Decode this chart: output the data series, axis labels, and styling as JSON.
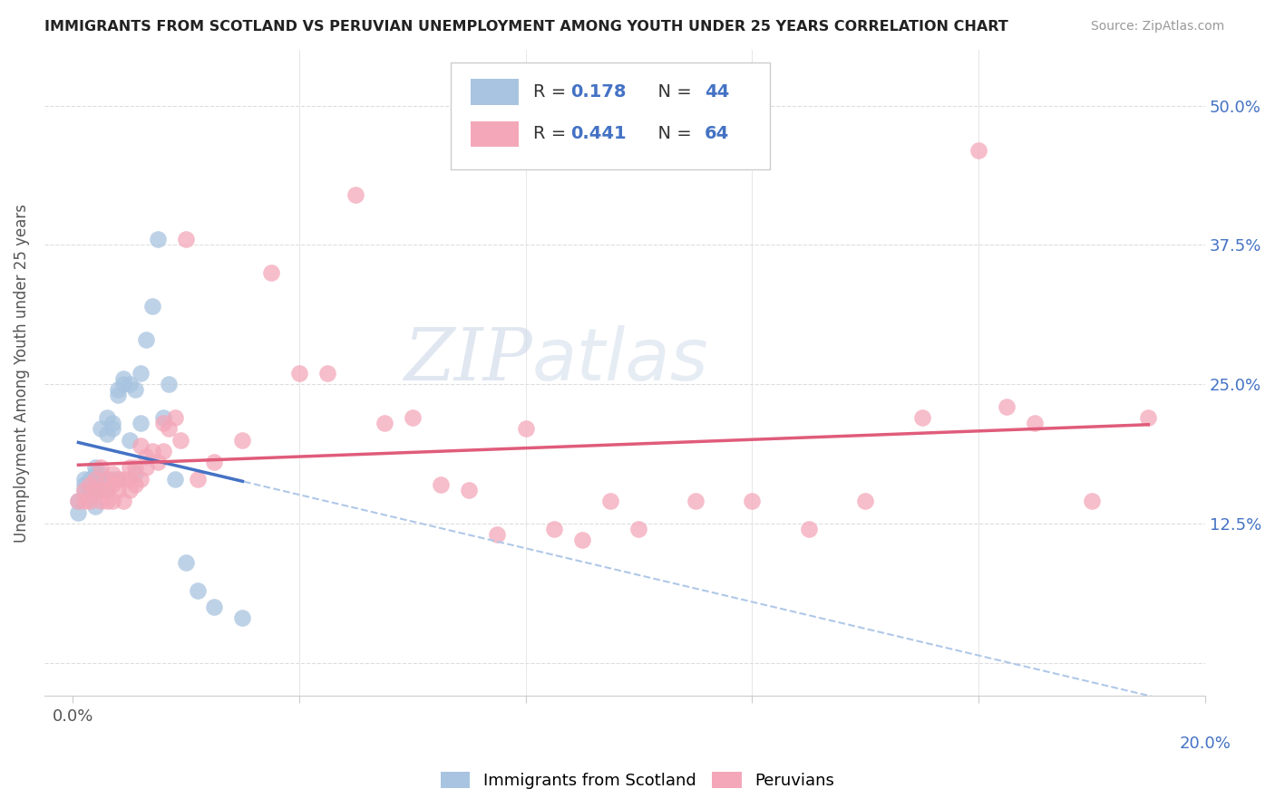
{
  "title": "IMMIGRANTS FROM SCOTLAND VS PERUVIAN UNEMPLOYMENT AMONG YOUTH UNDER 25 YEARS CORRELATION CHART",
  "source": "Source: ZipAtlas.com",
  "ylabel": "Unemployment Among Youth under 25 years",
  "xlim": [
    0.0,
    0.2
  ],
  "ylim": [
    -0.03,
    0.55
  ],
  "yticks": [
    0.0,
    0.125,
    0.25,
    0.375,
    0.5
  ],
  "ytick_labels": [
    "",
    "12.5%",
    "25.0%",
    "37.5%",
    "50.0%"
  ],
  "xticks": [
    0.0,
    0.04,
    0.08,
    0.12,
    0.16,
    0.2
  ],
  "legend_r1": "0.178",
  "legend_n1": "44",
  "legend_r2": "0.441",
  "legend_n2": "64",
  "scotland_color": "#a8c4e0",
  "peruvian_color": "#f4a7b9",
  "scotland_line_color": "#4472c4",
  "peruvian_line_color": "#e05c7a",
  "text_color": "#4472c4",
  "watermark": "ZIPatlas",
  "scotland_x": [
    0.001,
    0.001,
    0.002,
    0.002,
    0.002,
    0.003,
    0.003,
    0.003,
    0.004,
    0.004,
    0.004,
    0.004,
    0.005,
    0.005,
    0.005,
    0.005,
    0.006,
    0.006,
    0.006,
    0.006,
    0.007,
    0.007,
    0.007,
    0.008,
    0.008,
    0.008,
    0.009,
    0.009,
    0.01,
    0.01,
    0.011,
    0.011,
    0.012,
    0.012,
    0.013,
    0.014,
    0.015,
    0.016,
    0.017,
    0.018,
    0.02,
    0.022,
    0.025,
    0.03
  ],
  "scotland_y": [
    0.135,
    0.145,
    0.155,
    0.165,
    0.16,
    0.15,
    0.155,
    0.165,
    0.14,
    0.16,
    0.17,
    0.175,
    0.155,
    0.165,
    0.17,
    0.21,
    0.155,
    0.165,
    0.205,
    0.22,
    0.165,
    0.21,
    0.215,
    0.165,
    0.24,
    0.245,
    0.25,
    0.255,
    0.2,
    0.25,
    0.17,
    0.245,
    0.215,
    0.26,
    0.29,
    0.32,
    0.38,
    0.22,
    0.25,
    0.165,
    0.09,
    0.065,
    0.05,
    0.04
  ],
  "peruvian_x": [
    0.001,
    0.002,
    0.002,
    0.003,
    0.003,
    0.004,
    0.004,
    0.005,
    0.005,
    0.005,
    0.006,
    0.006,
    0.006,
    0.007,
    0.007,
    0.007,
    0.008,
    0.008,
    0.009,
    0.009,
    0.01,
    0.01,
    0.01,
    0.011,
    0.011,
    0.012,
    0.012,
    0.013,
    0.013,
    0.014,
    0.015,
    0.016,
    0.016,
    0.017,
    0.018,
    0.019,
    0.02,
    0.022,
    0.025,
    0.03,
    0.035,
    0.04,
    0.045,
    0.05,
    0.055,
    0.06,
    0.065,
    0.07,
    0.075,
    0.08,
    0.085,
    0.09,
    0.095,
    0.1,
    0.11,
    0.12,
    0.13,
    0.14,
    0.15,
    0.16,
    0.165,
    0.17,
    0.18,
    0.19
  ],
  "peruvian_y": [
    0.145,
    0.145,
    0.155,
    0.145,
    0.16,
    0.155,
    0.165,
    0.145,
    0.155,
    0.175,
    0.145,
    0.155,
    0.165,
    0.145,
    0.16,
    0.17,
    0.155,
    0.165,
    0.145,
    0.165,
    0.155,
    0.165,
    0.175,
    0.16,
    0.175,
    0.165,
    0.195,
    0.175,
    0.185,
    0.19,
    0.18,
    0.19,
    0.215,
    0.21,
    0.22,
    0.2,
    0.38,
    0.165,
    0.18,
    0.2,
    0.35,
    0.26,
    0.26,
    0.42,
    0.215,
    0.22,
    0.16,
    0.155,
    0.115,
    0.21,
    0.12,
    0.11,
    0.145,
    0.12,
    0.145,
    0.145,
    0.12,
    0.145,
    0.22,
    0.46,
    0.23,
    0.215,
    0.145,
    0.22
  ]
}
